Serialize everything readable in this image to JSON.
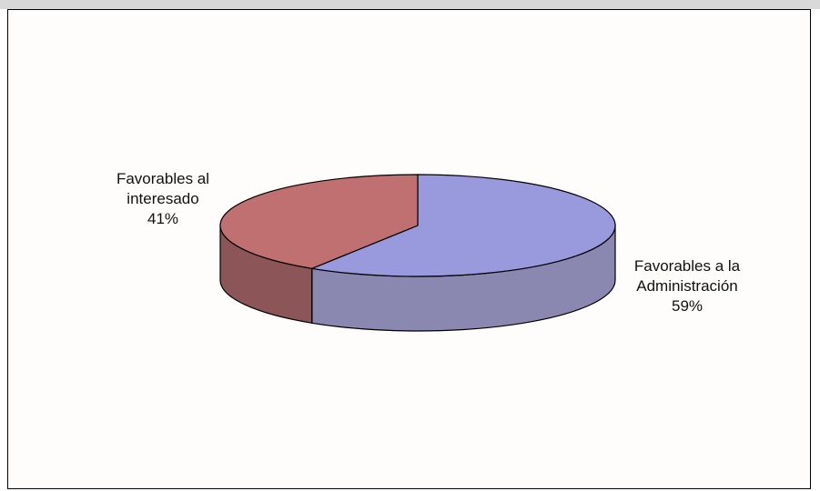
{
  "chart_data": {
    "type": "pie",
    "style": "3d",
    "labels": [
      "Favorables a la Administración",
      "Favorables al interesado"
    ],
    "values": [
      59,
      41
    ],
    "colors": [
      "#9999dd",
      "#c07070"
    ],
    "side_colors": [
      "#8a88b0",
      "#8c5558"
    ],
    "data_labels": [
      {
        "line1": "Favorables a la",
        "line2": "Administración",
        "pct": "59%"
      },
      {
        "line1": "Favorables al",
        "line2": "interesado",
        "pct": "41%"
      }
    ]
  }
}
